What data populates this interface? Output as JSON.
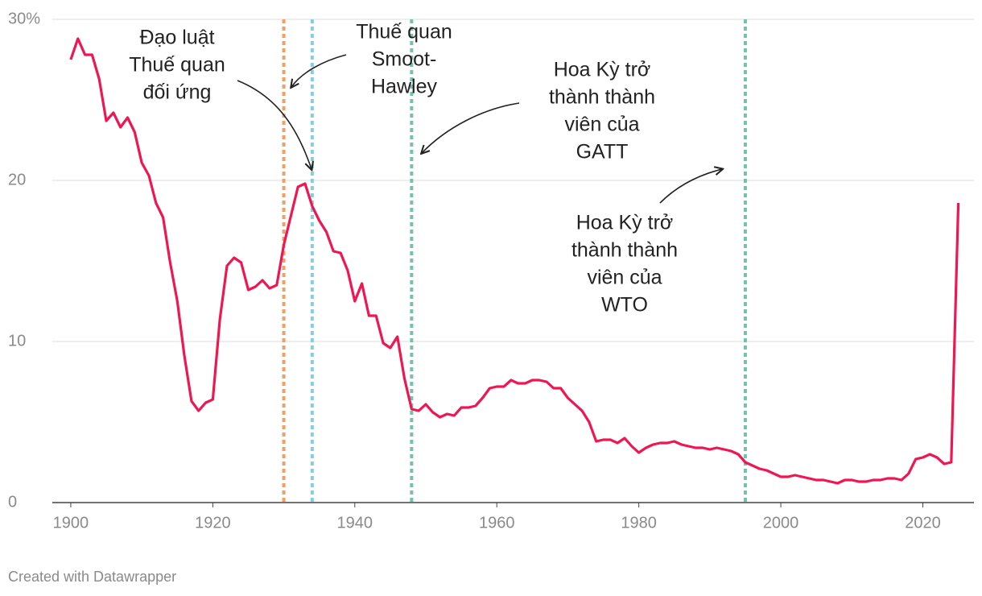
{
  "chart_data": {
    "type": "line",
    "x": [
      1900,
      1901,
      1902,
      1903,
      1904,
      1905,
      1906,
      1907,
      1908,
      1909,
      1910,
      1911,
      1912,
      1913,
      1914,
      1915,
      1916,
      1917,
      1918,
      1919,
      1920,
      1921,
      1922,
      1923,
      1924,
      1925,
      1926,
      1927,
      1928,
      1929,
      1930,
      1931,
      1932,
      1933,
      1934,
      1935,
      1936,
      1937,
      1938,
      1939,
      1940,
      1941,
      1942,
      1943,
      1944,
      1945,
      1946,
      1947,
      1948,
      1949,
      1950,
      1951,
      1952,
      1953,
      1954,
      1955,
      1956,
      1957,
      1958,
      1959,
      1960,
      1961,
      1962,
      1963,
      1964,
      1965,
      1966,
      1967,
      1968,
      1969,
      1970,
      1971,
      1972,
      1973,
      1974,
      1975,
      1976,
      1977,
      1978,
      1979,
      1980,
      1981,
      1982,
      1983,
      1984,
      1985,
      1986,
      1987,
      1988,
      1989,
      1990,
      1991,
      1992,
      1993,
      1994,
      1995,
      1996,
      1997,
      1998,
      1999,
      2000,
      2001,
      2002,
      2003,
      2004,
      2005,
      2006,
      2007,
      2008,
      2009,
      2010,
      2011,
      2012,
      2013,
      2014,
      2015,
      2016,
      2017,
      2018,
      2019,
      2020,
      2021,
      2022,
      2023,
      2024,
      2025
    ],
    "values": [
      27.5,
      28.8,
      27.8,
      27.8,
      26.3,
      23.7,
      24.2,
      23.3,
      23.9,
      23.0,
      21.1,
      20.3,
      18.6,
      17.7,
      14.9,
      12.5,
      9.1,
      6.3,
      5.7,
      6.2,
      6.4,
      11.4,
      14.7,
      15.2,
      14.9,
      13.2,
      13.4,
      13.8,
      13.3,
      13.5,
      16.0,
      17.8,
      19.6,
      19.8,
      18.4,
      17.5,
      16.8,
      15.6,
      15.5,
      14.4,
      12.5,
      13.6,
      11.6,
      11.6,
      9.9,
      9.6,
      10.3,
      7.7,
      5.8,
      5.7,
      6.1,
      5.6,
      5.3,
      5.5,
      5.4,
      5.9,
      5.9,
      6.0,
      6.5,
      7.1,
      7.2,
      7.2,
      7.6,
      7.4,
      7.4,
      7.6,
      7.6,
      7.5,
      7.1,
      7.1,
      6.5,
      6.1,
      5.7,
      5.0,
      3.8,
      3.9,
      3.9,
      3.7,
      4.0,
      3.5,
      3.1,
      3.4,
      3.6,
      3.7,
      3.7,
      3.8,
      3.6,
      3.5,
      3.4,
      3.4,
      3.3,
      3.4,
      3.3,
      3.2,
      3.0,
      2.5,
      2.3,
      2.1,
      2.0,
      1.8,
      1.6,
      1.6,
      1.7,
      1.6,
      1.5,
      1.4,
      1.4,
      1.3,
      1.2,
      1.4,
      1.4,
      1.3,
      1.3,
      1.4,
      1.4,
      1.5,
      1.5,
      1.4,
      1.8,
      2.7,
      2.8,
      3.0,
      2.8,
      2.4,
      2.5,
      18.6
    ],
    "color": "#ef1752",
    "xlim": [
      1897.4,
      2027.2
    ],
    "ylim": [
      0,
      30
    ],
    "xticks": [
      1900,
      1920,
      1940,
      1960,
      1980,
      2000,
      2020
    ],
    "yticks": [
      0,
      10,
      20,
      {
        "value": 30,
        "label": "30%"
      }
    ],
    "grid": true,
    "markers": [
      {
        "x": 1930,
        "color": "#f0a063"
      },
      {
        "x": 1934,
        "color": "#86cde0"
      },
      {
        "x": 1948,
        "color": "#74c2ae"
      },
      {
        "x": 1995,
        "color": "#74c2ae"
      }
    ],
    "annotations": [
      {
        "lines": [
          "Đạo luật",
          "Thuế quan",
          "đối ứng"
        ]
      },
      {
        "lines": [
          "Thuế quan",
          "Smoot-",
          "Hawley"
        ]
      },
      {
        "lines": [
          "Hoa Kỳ trở",
          "thành thành",
          "viên của",
          "GATT"
        ]
      },
      {
        "lines": [
          "Hoa Kỳ trở",
          "thành thành",
          "viên của",
          "WTO"
        ]
      }
    ],
    "footer": "Created with Datawrapper"
  }
}
